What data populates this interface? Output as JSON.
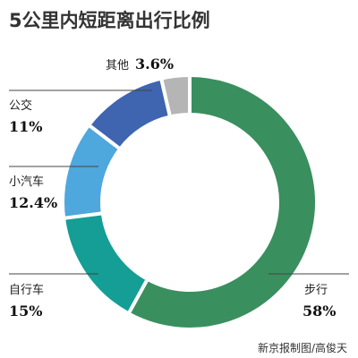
{
  "chart_data": {
    "type": "pie",
    "donut": true,
    "title": "5公里内短距离出行比例",
    "unit": "%",
    "categories": [
      "步行",
      "自行车",
      "小汽车",
      "公交",
      "其他"
    ],
    "values": [
      58,
      15,
      12.4,
      11,
      3.6
    ],
    "labels": [
      {
        "name": "步行",
        "pct": "58%"
      },
      {
        "name": "自行车",
        "pct": "15%"
      },
      {
        "name": "小汽车",
        "pct": "12.4%"
      },
      {
        "name": "公交",
        "pct": "11%"
      },
      {
        "name": "其他",
        "pct": "3.6%"
      }
    ],
    "colors": [
      "#3a8f5f",
      "#149e95",
      "#4ea7dd",
      "#3f64b0",
      "#b5b5b5"
    ],
    "legend": "none",
    "start": "top",
    "direction": "clockwise"
  },
  "credit": "新京报制图/高俊天"
}
